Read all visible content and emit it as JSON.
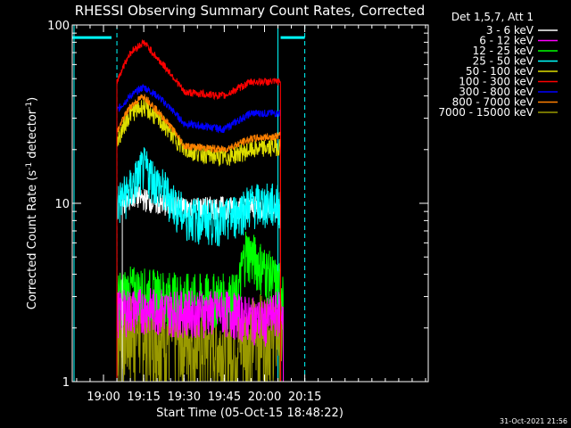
{
  "chart_data": {
    "type": "line",
    "title": "RHESSI Observing Summary Count Rates, Corrected",
    "xlabel": "Start Time (05-Oct-15 18:48:22)",
    "ylabel_parts": [
      "Corrected Count Rate (s",
      "-1",
      " detector",
      "-1",
      ")"
    ],
    "ylim": [
      1,
      100
    ],
    "y_scale": "log",
    "xlim": [
      "18:48:22",
      "21:01:00"
    ],
    "x_ticks": [
      "19:00",
      "19:15",
      "19:30",
      "19:45",
      "20:00",
      "20:15"
    ],
    "y_ticks": [
      "1",
      "10",
      "100"
    ],
    "legend_header": "Det 1,5,7, Att 1",
    "legend_position": "top-right",
    "footer_timestamp": "31-Oct-2021 21:56",
    "series": [
      {
        "name": "3 - 6 keV",
        "color": "#ffffff",
        "x": [
          "19:07",
          "19:12",
          "19:20",
          "19:30",
          "19:45",
          "20:00",
          "20:06"
        ],
        "values": [
          10,
          11,
          10,
          9.5,
          9.5,
          9.5,
          9
        ]
      },
      {
        "name": "6 - 12 keV",
        "color": "#ff00ff",
        "x": [
          "19:05",
          "19:15",
          "19:30",
          "19:45",
          "20:00",
          "20:05",
          "20:07"
        ],
        "values": [
          2.5,
          2.6,
          2.5,
          2.5,
          2.2,
          2.5,
          2.5
        ]
      },
      {
        "name": "12 - 25 keV",
        "color": "#00ff00",
        "x": [
          "19:05",
          "19:10",
          "19:30",
          "19:50",
          "19:53",
          "20:05",
          "20:07"
        ],
        "values": [
          3,
          3.3,
          3,
          3,
          5.5,
          3.5,
          3.5
        ]
      },
      {
        "name": "25 - 50 keV",
        "color": "#00ffff",
        "x": [
          "19:05",
          "19:10",
          "19:15",
          "19:20",
          "19:30",
          "19:45",
          "19:55",
          "20:06"
        ],
        "values": [
          10,
          12,
          16,
          13,
          8.5,
          8,
          10,
          10
        ]
      },
      {
        "name": "50 - 100 keV",
        "color": "#dddd00",
        "x": [
          "19:05",
          "19:10",
          "19:15",
          "19:20",
          "19:30",
          "19:45",
          "19:55",
          "20:06"
        ],
        "values": [
          22,
          32,
          35,
          30,
          20,
          18,
          20,
          21
        ]
      },
      {
        "name": "100 - 300 keV",
        "color": "#ff0000",
        "x": [
          "19:05",
          "19:10",
          "19:15",
          "19:20",
          "19:30",
          "19:45",
          "19:55",
          "20:06"
        ],
        "values": [
          48,
          70,
          80,
          65,
          42,
          40,
          48,
          48
        ]
      },
      {
        "name": "300 - 800 keV",
        "color": "#0000ff",
        "x": [
          "19:05",
          "19:10",
          "19:15",
          "19:20",
          "19:30",
          "19:45",
          "19:55",
          "20:06"
        ],
        "values": [
          33,
          40,
          45,
          40,
          28,
          26,
          32,
          32
        ]
      },
      {
        "name": "800 - 7000 keV",
        "color": "#ff8000",
        "x": [
          "19:05",
          "19:10",
          "19:15",
          "19:20",
          "19:30",
          "19:45",
          "19:55",
          "20:06"
        ],
        "values": [
          25,
          35,
          40,
          33,
          21,
          20,
          23,
          24
        ]
      },
      {
        "name": "7000 - 15000 keV",
        "color": "#999900",
        "x": [
          "19:05",
          "19:15",
          "19:30",
          "19:45",
          "20:00",
          "20:07"
        ],
        "values": [
          2,
          2,
          1.8,
          1.6,
          2,
          2
        ]
      }
    ],
    "attenuator_level": 85,
    "attenuator_color": "#00ffff"
  }
}
